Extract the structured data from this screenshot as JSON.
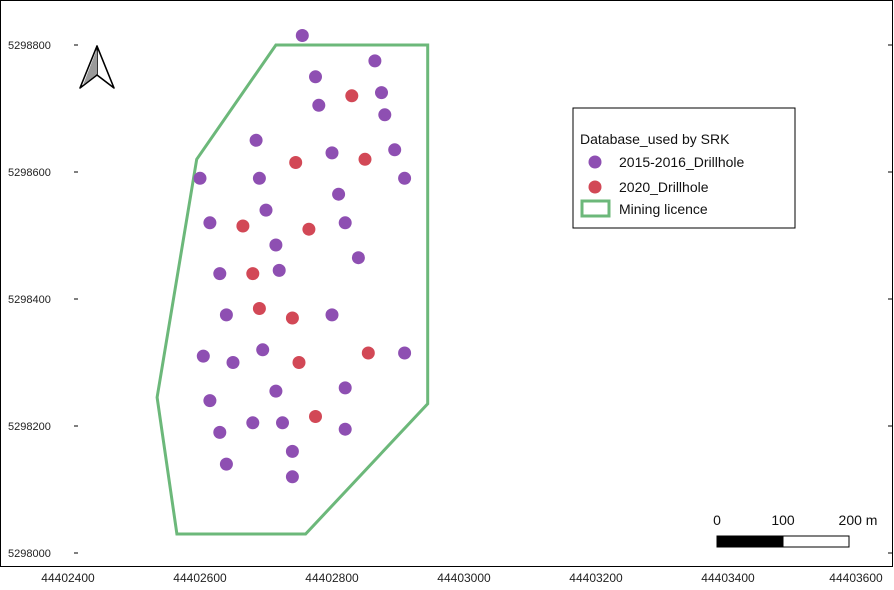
{
  "map": {
    "x_ticks": [
      "44402400",
      "44402600",
      "44402800",
      "44403000",
      "44403200",
      "44403400",
      "44403600"
    ],
    "y_ticks": [
      "5298800",
      "5298600",
      "5298400",
      "5298200",
      "5298000"
    ],
    "x_range": [
      44402400,
      44403600
    ],
    "y_range": [
      5298000,
      5298800
    ],
    "north_arrow_icon": "north-arrow-icon",
    "colors": {
      "drillhole_2015": "#8e4fb2",
      "drillhole_2020": "#d24856",
      "licence": "#6cb87a"
    }
  },
  "legend": {
    "title": "Database_used by SRK",
    "items": [
      {
        "label": "2015-2016_Drillhole",
        "symbol": "circle",
        "color": "#8e4fb2"
      },
      {
        "label": "2020_Drillhole",
        "symbol": "circle",
        "color": "#d24856"
      },
      {
        "label": "Mining licence",
        "symbol": "rectangle-outline",
        "color": "#6cb87a"
      }
    ]
  },
  "scale_bar": {
    "labels": [
      "0",
      "100",
      "200 m"
    ],
    "range_m": [
      0,
      200
    ]
  },
  "chart_data": {
    "type": "scatter",
    "x_range": [
      44402400,
      44403600
    ],
    "y_range": [
      5298000,
      5298800
    ],
    "licence_polygon": [
      [
        44402715,
        5298800
      ],
      [
        44402945,
        5298800
      ],
      [
        44402945,
        5298235
      ],
      [
        44402760,
        5298030
      ],
      [
        44402565,
        5298030
      ],
      [
        44402535,
        5298245
      ],
      [
        44402595,
        5298620
      ]
    ],
    "series": [
      {
        "name": "2015-2016_Drillhole",
        "points": [
          [
            44402755,
            5298815
          ],
          [
            44402865,
            5298775
          ],
          [
            44402775,
            5298750
          ],
          [
            44402875,
            5298725
          ],
          [
            44402780,
            5298705
          ],
          [
            44402880,
            5298690
          ],
          [
            44402685,
            5298650
          ],
          [
            44402895,
            5298635
          ],
          [
            44402800,
            5298630
          ],
          [
            44402600,
            5298590
          ],
          [
            44402690,
            5298590
          ],
          [
            44402910,
            5298590
          ],
          [
            44402810,
            5298565
          ],
          [
            44402700,
            5298540
          ],
          [
            44402615,
            5298520
          ],
          [
            44402820,
            5298520
          ],
          [
            44402715,
            5298485
          ],
          [
            44402840,
            5298465
          ],
          [
            44402720,
            5298445
          ],
          [
            44402630,
            5298440
          ],
          [
            44402640,
            5298375
          ],
          [
            44402800,
            5298375
          ],
          [
            44402605,
            5298310
          ],
          [
            44402695,
            5298320
          ],
          [
            44402910,
            5298315
          ],
          [
            44402650,
            5298300
          ],
          [
            44402715,
            5298255
          ],
          [
            44402820,
            5298260
          ],
          [
            44402615,
            5298240
          ],
          [
            44402680,
            5298205
          ],
          [
            44402725,
            5298205
          ],
          [
            44402630,
            5298190
          ],
          [
            44402820,
            5298195
          ],
          [
            44402740,
            5298160
          ],
          [
            44402640,
            5298140
          ],
          [
            44402740,
            5298120
          ]
        ]
      },
      {
        "name": "2020_Drillhole",
        "points": [
          [
            44402830,
            5298720
          ],
          [
            44402745,
            5298615
          ],
          [
            44402850,
            5298620
          ],
          [
            44402665,
            5298515
          ],
          [
            44402765,
            5298510
          ],
          [
            44402680,
            5298440
          ],
          [
            44402690,
            5298385
          ],
          [
            44402740,
            5298370
          ],
          [
            44402855,
            5298315
          ],
          [
            44402750,
            5298300
          ],
          [
            44402775,
            5298215
          ]
        ]
      }
    ]
  }
}
